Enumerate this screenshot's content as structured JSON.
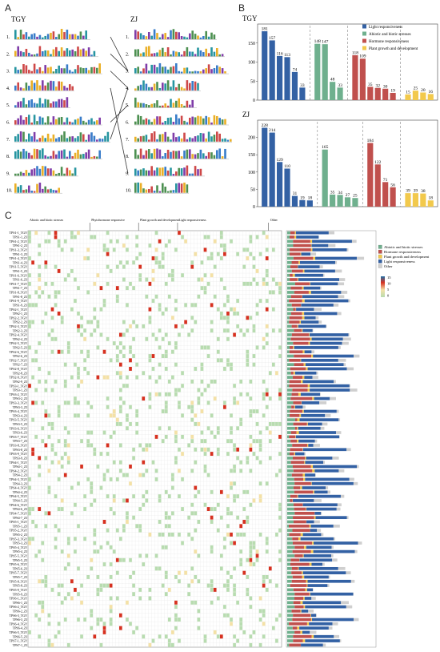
{
  "panel_letters": [
    "A",
    "B",
    "C"
  ],
  "panel_a": {
    "left_title": "TGY",
    "right_title": "ZJ",
    "motif_numbers": [
      "1.",
      "2.",
      "3.",
      "4.",
      "5.",
      "6.",
      "7.",
      "8.",
      "9.",
      "10."
    ],
    "right_to_left_links": [
      [
        1,
        1
      ],
      [
        2,
        1
      ],
      [
        3,
        2
      ],
      [
        6,
        3
      ],
      [
        7,
        2
      ],
      [
        4,
        7
      ]
    ]
  },
  "colors": {
    "light": "#3361a4",
    "abiotic": "#6fb08e",
    "hormone": "#c0504d",
    "growth": "#f2c94c",
    "other": "#cfcfcf",
    "heat_low": "#b8dcb0",
    "heat_mid": "#f4e1a6",
    "heat_high": "#d7301f",
    "heat_max": "#1b6fa8"
  },
  "legend_b": [
    "Light responsiveness",
    "Abiotic and biotic stresses",
    "Hormone responsiveness",
    "Plant growth and development"
  ],
  "legend_c": [
    "Abiotic and biotic stresses",
    "Hormone responsiveness",
    "Plant growth and development",
    "Light responsiveness",
    "Other"
  ],
  "heat_scale_labels": [
    "15",
    "10",
    "5",
    "0"
  ],
  "chart_data": [
    {
      "type": "bar",
      "title": "TGY",
      "ylim": [
        0,
        200
      ],
      "yticks": [
        0,
        50,
        100,
        150
      ],
      "groups": [
        {
          "name": "Light responsiveness",
          "values": [
            181,
            157,
            116,
            113,
            74,
            33
          ]
        },
        {
          "name": "Abiotic and biotic stresses",
          "values": [
            148,
            147,
            48,
            33
          ]
        },
        {
          "name": "Hormone responsiveness",
          "values": [
            118,
            109,
            35,
            32,
            30,
            19
          ]
        },
        {
          "name": "Plant growth and development",
          "values": [
            15,
            25,
            20,
            16
          ]
        }
      ],
      "legend_position": "top-right"
    },
    {
      "type": "bar",
      "title": "ZJ",
      "ylim": [
        0,
        250
      ],
      "yticks": [
        0,
        50,
        100,
        150,
        200
      ],
      "groups": [
        {
          "name": "Light responsiveness",
          "values": [
            228,
            214,
            129,
            110,
            31,
            19,
            18
          ]
        },
        {
          "name": "Abiotic and biotic stresses",
          "values": [
            165,
            35,
            34,
            27,
            25
          ]
        },
        {
          "name": "Hormone responsiveness",
          "values": [
            184,
            122,
            71,
            56
          ]
        },
        {
          "name": "Plant growth and development",
          "values": [
            39,
            39,
            38,
            18
          ]
        }
      ]
    },
    {
      "type": "heatmap",
      "column_groups": [
        "Abiotic and biotic stresses",
        "Phytohormone responsive",
        "Plant growth and development",
        "Light responsiveness",
        "Other"
      ],
      "row_labels": [
        "TPS1-1_TGY",
        "TPS1-1_ZJ",
        "TPS1-2_TGY",
        "TPS1-2_ZJ",
        "TPS1-3_TGY",
        "TPS1-3_ZJ",
        "TPS1-4_TGY",
        "TPS1-4_ZJ",
        "TPS1-5_TGY",
        "TPS1-5_ZJ",
        "TPS1-6_TGY",
        "TPS1-6_ZJ",
        "TPS1-7_TGY",
        "TPS1-7_ZJ",
        "TPS1-8_TGY",
        "TPS1-8_ZJ",
        "TPS1-9_TGY",
        "TPS1-9_ZJ",
        "TPS2-1_TGY",
        "TPS2-1_ZJ",
        "TPS2-2_TGY",
        "TPS2-2_ZJ",
        "TPS2-3_TGY",
        "TPS2-3_ZJ",
        "TPS2-4_TGY",
        "TPS2-4_ZJ",
        "TPS2-5_TGY",
        "TPS2-5_ZJ",
        "TPS2-6_TGY",
        "TPS2-6_ZJ",
        "TPS2-7_TGY",
        "TPS2-7_ZJ",
        "TPS2-8_TGY",
        "TPS2-8_ZJ",
        "TPS2-9_TGY",
        "TPS2-9_ZJ",
        "TPS3-1_TGY",
        "TPS3-1_ZJ",
        "TPS3-2_TGY",
        "TPS3-2_ZJ",
        "TPS3-3_TGY",
        "TPS3-3_ZJ",
        "TPS3-4_TGY",
        "TPS3-4_ZJ",
        "TPS3-5_TGY",
        "TPS3-5_ZJ",
        "TPS3-6_TGY",
        "TPS3-6_ZJ",
        "TPS3-7_TGY",
        "TPS3-7_ZJ",
        "TPS3-8_TGY",
        "TPS3-8_ZJ",
        "TPS3-9_TGY",
        "TPS3-9_ZJ",
        "TPS4-1_TGY",
        "TPS4-1_ZJ",
        "TPS4-2_TGY",
        "TPS4-2_ZJ",
        "TPS4-3_TGY",
        "TPS4-3_ZJ",
        "TPS4-4_TGY",
        "TPS4-4_ZJ",
        "TPS4-5_TGY",
        "TPS4-5_ZJ",
        "TPS4-6_TGY",
        "TPS4-6_ZJ",
        "TPS4-7_TGY",
        "TPS4-7_ZJ",
        "TPS5-1_TGY",
        "TPS5-1_ZJ",
        "TPS5-2_TGY",
        "TPS5-2_ZJ",
        "TPS5-3_TGY",
        "TPS5-3_ZJ",
        "TPS5-4_TGY",
        "TPS5-4_ZJ",
        "TPS5-5_TGY",
        "TPS5-5_ZJ",
        "TPS5-6_TGY",
        "TPS5-6_ZJ",
        "TPS5-7_TGY",
        "TPS5-7_ZJ",
        "TPS5-8_TGY",
        "TPS5-8_ZJ",
        "TPS5-9_TGY",
        "TPS5-9_ZJ",
        "TPS6-1_TGY",
        "TPS6-1_ZJ",
        "TPS6-2_TGY",
        "TPS6-2_ZJ",
        "TPS6-3_TGY",
        "TPS6-3_ZJ",
        "TPS6-4_TGY",
        "TPS6-4_ZJ",
        "TPS6-5_TGY",
        "TPS6-5_ZJ",
        "TPS7-1_TGY",
        "TPS7-1_ZJ"
      ]
    }
  ]
}
